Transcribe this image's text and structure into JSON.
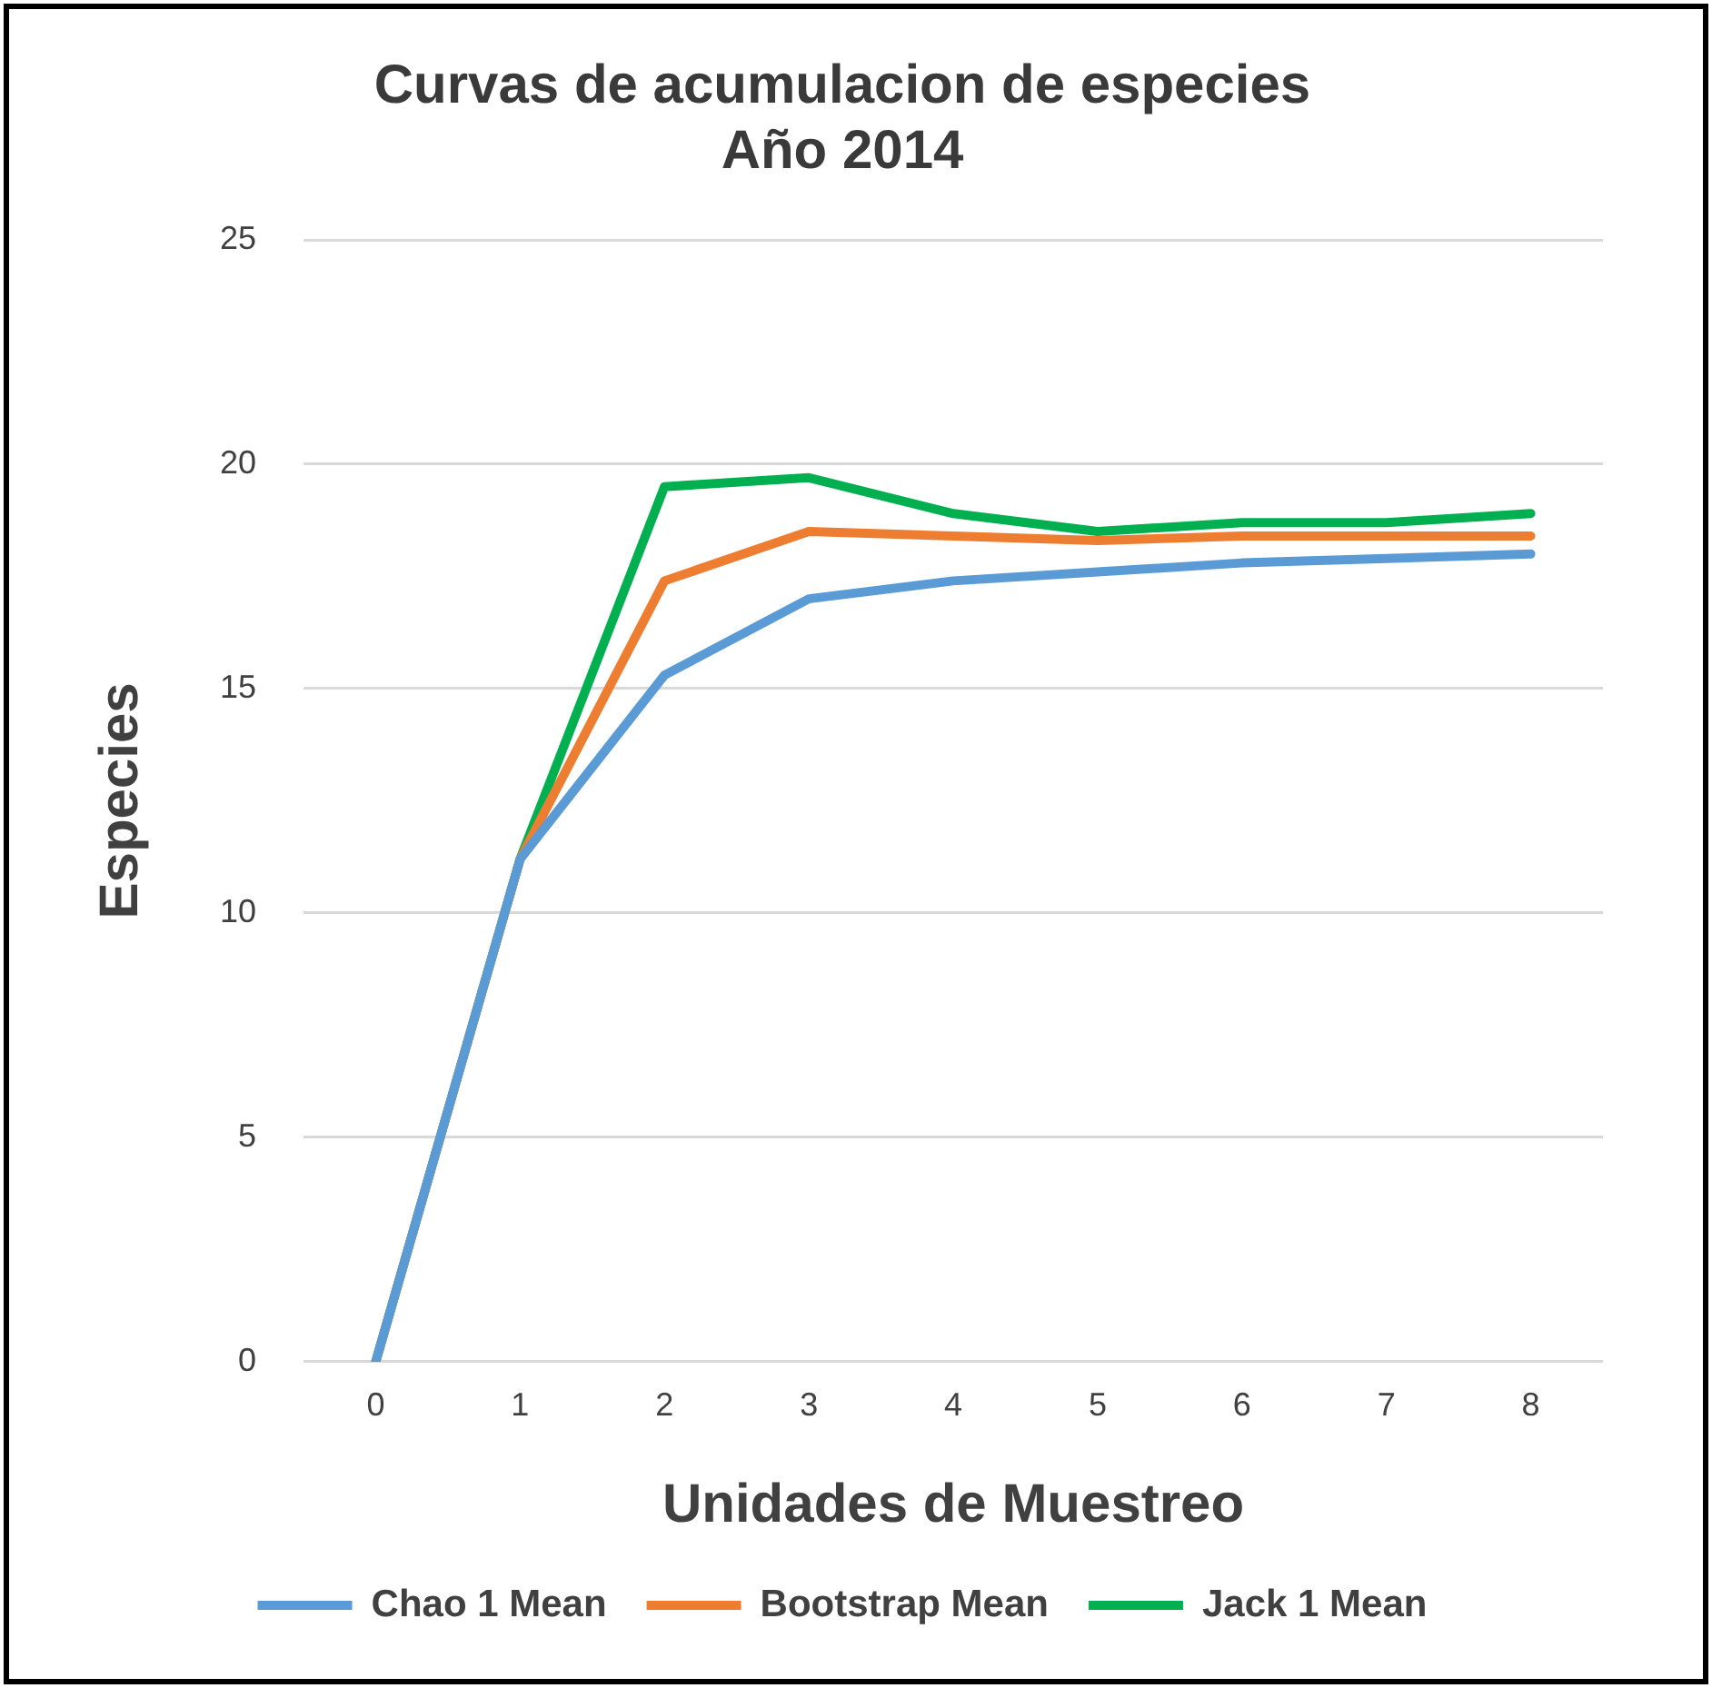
{
  "chart_data": {
    "type": "line",
    "title": [
      "Curvas de acumulacion de especies",
      "Año 2014"
    ],
    "xlabel": "Unidades de Muestreo",
    "ylabel": "Especies",
    "categories": [
      "0",
      "1",
      "2",
      "3",
      "4",
      "5",
      "6",
      "7",
      "8"
    ],
    "series": [
      {
        "name": "Chao 1 Mean",
        "color": "#5b9bd5",
        "values": [
          0,
          11.2,
          15.3,
          17.0,
          17.4,
          17.6,
          17.8,
          17.9,
          18.0
        ]
      },
      {
        "name": "Bootstrap Mean",
        "color": "#ed7d31",
        "values": [
          0,
          11.2,
          17.4,
          18.5,
          18.4,
          18.3,
          18.4,
          18.4,
          18.4
        ]
      },
      {
        "name": "Jack 1 Mean",
        "color": "#00b050",
        "values": [
          0,
          11.2,
          19.5,
          19.7,
          18.9,
          18.5,
          18.7,
          18.7,
          18.9
        ]
      }
    ],
    "ylim": [
      0,
      25
    ],
    "yticks": [
      0,
      5,
      10,
      15,
      20,
      25
    ],
    "grid": "y",
    "legend": "bottom",
    "marker": "none",
    "line_style": "solid"
  }
}
